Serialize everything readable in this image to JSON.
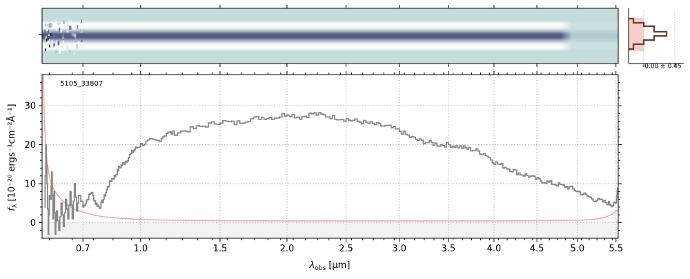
{
  "chart_data": {
    "type": "line",
    "object_id": "5105_33807",
    "xlabel_symbol": "λ",
    "xlabel_sub": "obs",
    "xlabel_unit": " [μm]",
    "ylabel_main": "f",
    "ylabel_sub": "λ",
    "ylabel_unit": " [10⁻²⁰ ergs⁻¹cm⁻²Å⁻¹]",
    "x_ticks": [
      0.7,
      1.0,
      1.5,
      2.0,
      2.5,
      3.0,
      3.5,
      4.0,
      4.5,
      5.0,
      5.5
    ],
    "x_tick_labels": [
      "0.7",
      "1.0",
      "1.5",
      "2.0",
      "2.5",
      "3.0",
      "3.5",
      "4.0",
      "4.5",
      "5.0",
      "5.5"
    ],
    "y_ticks": [
      0,
      10,
      20,
      30
    ],
    "y_tick_labels": [
      "0",
      "10",
      "20",
      "30"
    ],
    "xlim": [
      0.52,
      5.53
    ],
    "ylim": [
      -4,
      38
    ],
    "x_scale": "sqrt",
    "grid": true,
    "series": [
      {
        "name": "",
        "role": "flux",
        "color": "#888888",
        "style": "steps",
        "points": [
          [
            0.53,
            4
          ],
          [
            0.535,
            20
          ],
          [
            0.54,
            10
          ],
          [
            0.545,
            -3
          ],
          [
            0.55,
            7
          ],
          [
            0.555,
            6
          ],
          [
            0.56,
            13
          ],
          [
            0.565,
            1
          ],
          [
            0.57,
            8
          ],
          [
            0.575,
            -3
          ],
          [
            0.58,
            3
          ],
          [
            0.59,
            -2
          ],
          [
            0.6,
            5
          ],
          [
            0.61,
            -1
          ],
          [
            0.62,
            6
          ],
          [
            0.63,
            1
          ],
          [
            0.64,
            8
          ],
          [
            0.65,
            1
          ],
          [
            0.66,
            10
          ],
          [
            0.67,
            3
          ],
          [
            0.68,
            7
          ],
          [
            0.7,
            4
          ],
          [
            0.72,
            6
          ],
          [
            0.74,
            8
          ],
          [
            0.76,
            5
          ],
          [
            0.78,
            4
          ],
          [
            0.8,
            6
          ],
          [
            0.82,
            9
          ],
          [
            0.84,
            11
          ],
          [
            0.86,
            12
          ],
          [
            0.88,
            14
          ],
          [
            0.9,
            15
          ],
          [
            0.92,
            16
          ],
          [
            0.95,
            18
          ],
          [
            0.97,
            19
          ],
          [
            1.0,
            20
          ],
          [
            1.05,
            21
          ],
          [
            1.1,
            21
          ],
          [
            1.15,
            23
          ],
          [
            1.2,
            23
          ],
          [
            1.3,
            24
          ],
          [
            1.4,
            25
          ],
          [
            1.5,
            26
          ],
          [
            1.6,
            25.5
          ],
          [
            1.7,
            26.5
          ],
          [
            1.8,
            27
          ],
          [
            1.9,
            27
          ],
          [
            2.0,
            28
          ],
          [
            2.1,
            27
          ],
          [
            2.2,
            28
          ],
          [
            2.3,
            27.5
          ],
          [
            2.4,
            27
          ],
          [
            2.5,
            26.5
          ],
          [
            2.6,
            26
          ],
          [
            2.7,
            25.5
          ],
          [
            2.8,
            25
          ],
          [
            2.9,
            24.5
          ],
          [
            3.0,
            23.5
          ],
          [
            3.1,
            22
          ],
          [
            3.2,
            21
          ],
          [
            3.3,
            20.5
          ],
          [
            3.4,
            20
          ],
          [
            3.5,
            20
          ],
          [
            3.6,
            19.5
          ],
          [
            3.7,
            19
          ],
          [
            3.8,
            18.5
          ],
          [
            3.9,
            17.5
          ],
          [
            4.0,
            15.5
          ],
          [
            4.1,
            14.5
          ],
          [
            4.2,
            13.5
          ],
          [
            4.3,
            12.5
          ],
          [
            4.4,
            12
          ],
          [
            4.5,
            11
          ],
          [
            4.6,
            10.5
          ],
          [
            4.7,
            10
          ],
          [
            4.8,
            9.5
          ],
          [
            4.9,
            9
          ],
          [
            5.0,
            8
          ],
          [
            5.1,
            7
          ],
          [
            5.2,
            6
          ],
          [
            5.3,
            5.5
          ],
          [
            5.4,
            5
          ],
          [
            5.45,
            4.5
          ],
          [
            5.5,
            5
          ],
          [
            5.52,
            9
          ]
        ]
      },
      {
        "name": "",
        "role": "error",
        "color": "#f4a6a6",
        "style": "line",
        "points": [
          [
            0.525,
            38
          ],
          [
            0.53,
            25
          ],
          [
            0.54,
            16
          ],
          [
            0.55,
            12
          ],
          [
            0.56,
            9.5
          ],
          [
            0.58,
            7.5
          ],
          [
            0.6,
            6
          ],
          [
            0.63,
            4.5
          ],
          [
            0.66,
            3.5
          ],
          [
            0.7,
            2.7
          ],
          [
            0.75,
            2
          ],
          [
            0.8,
            1.5
          ],
          [
            0.9,
            1.1
          ],
          [
            1.0,
            0.8
          ],
          [
            1.2,
            0.6
          ],
          [
            1.5,
            0.5
          ],
          [
            2.0,
            0.45
          ],
          [
            3.0,
            0.45
          ],
          [
            4.0,
            0.45
          ],
          [
            4.5,
            0.5
          ],
          [
            5.0,
            0.6
          ],
          [
            5.2,
            0.8
          ],
          [
            5.35,
            1.3
          ],
          [
            5.45,
            2.2
          ],
          [
            5.52,
            3.2
          ]
        ]
      }
    ],
    "two_d": {
      "spine_label": "",
      "colormap": [
        "#c4dcdc",
        "#e6eeee",
        "#ffffff",
        "#9fb0be",
        "#555a80"
      ]
    },
    "profile": {
      "label": "-0.00 ± 0.45",
      "line_color": "#6b3a2a",
      "band_color": "#f8cfc8"
    }
  }
}
